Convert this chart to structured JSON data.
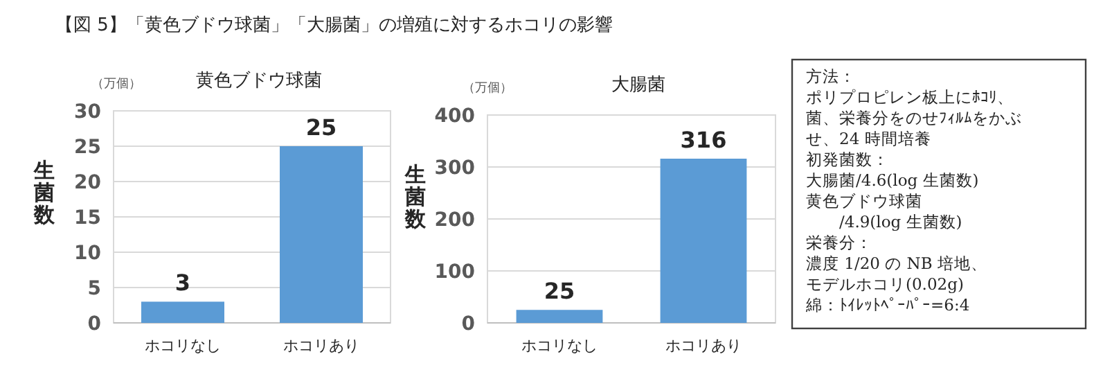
{
  "chart_data": [
    {
      "type": "bar",
      "title": "黄色ブドウ球菌",
      "ylabel": "生菌数",
      "annotations": [
        "【図 5】「黄色ブドウ球菌」「大腸菌」の増殖に対するホコリの影響",
        "（万個）"
      ],
      "categories": [
        "ホコリなし",
        "ホコリあり"
      ],
      "series": [
        {
          "color": "#5b9bd5",
          "values": [
            3,
            25
          ]
        }
      ],
      "ylim": [
        0,
        30
      ],
      "yticks": [
        0,
        5,
        10,
        15,
        20,
        25,
        30
      ],
      "grid": "y",
      "data_labels": true
    },
    {
      "type": "bar",
      "title": "大腸菌",
      "ylabel": "生菌数",
      "annotations": [
        "（万個）"
      ],
      "categories": [
        "ホコリなし",
        "ホコリあり"
      ],
      "series": [
        {
          "color": "#5b9bd5",
          "values": [
            25,
            316
          ]
        }
      ],
      "ylim": [
        0,
        400
      ],
      "yticks": [
        0,
        100,
        200,
        300,
        400
      ],
      "grid": "y",
      "data_labels": true
    },
    {
      "type": "other",
      "annotations": [
        "方法：",
        "ポリプロピレン板上にﾎｺﾘ、",
        "菌、栄養分をのせﾌｨﾙﾑをかぶ",
        "せ、24 時間培養",
        "初発菌数：",
        "大腸菌/4.6(log 生菌数)",
        "黄色ブドウ球菌",
        "　　/4.9(log 生菌数)",
        "栄養分：",
        "濃度 1/20 の NB 培地、",
        "モデルホコリ(0.02g)",
        "綿：ﾄｲﾚｯﾄﾍﾟｰﾊﾟｰ=6:4"
      ]
    }
  ]
}
